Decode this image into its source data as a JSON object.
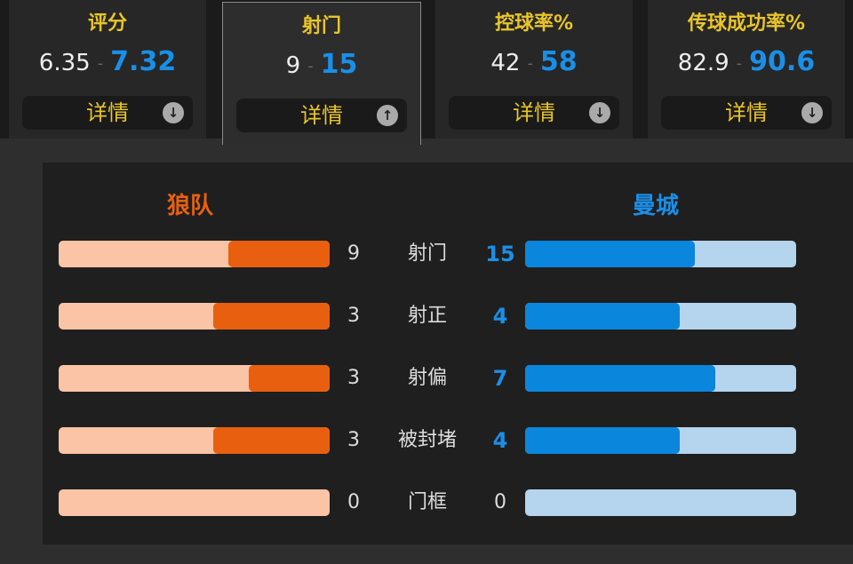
{
  "cards": [
    {
      "title": "评分",
      "left": "6.35",
      "right": "7.32",
      "detail": "详情",
      "arrow": "down"
    },
    {
      "title": "射门",
      "left": "9",
      "right": "15",
      "detail": "详情",
      "arrow": "up",
      "active": true
    },
    {
      "title": "控球率%",
      "left": "42",
      "right": "58",
      "detail": "详情",
      "arrow": "down"
    },
    {
      "title": "传球成功率%",
      "left": "82.9",
      "right": "90.6",
      "detail": "详情",
      "arrow": "down"
    }
  ],
  "separator": "-",
  "teams": {
    "home": "狼队",
    "away": "曼城"
  },
  "colors": {
    "home": "#e8600f",
    "home_light": "#fcc4a6",
    "away": "#0a86dd",
    "away_light": "#b5d5ee",
    "title": "#e9c52a"
  },
  "stats": [
    {
      "label": "射门",
      "home": 9,
      "away": 15
    },
    {
      "label": "射正",
      "home": 3,
      "away": 4
    },
    {
      "label": "射偏",
      "home": 3,
      "away": 7
    },
    {
      "label": "被封堵",
      "home": 3,
      "away": 4
    },
    {
      "label": "门框",
      "home": 0,
      "away": 0
    }
  ]
}
